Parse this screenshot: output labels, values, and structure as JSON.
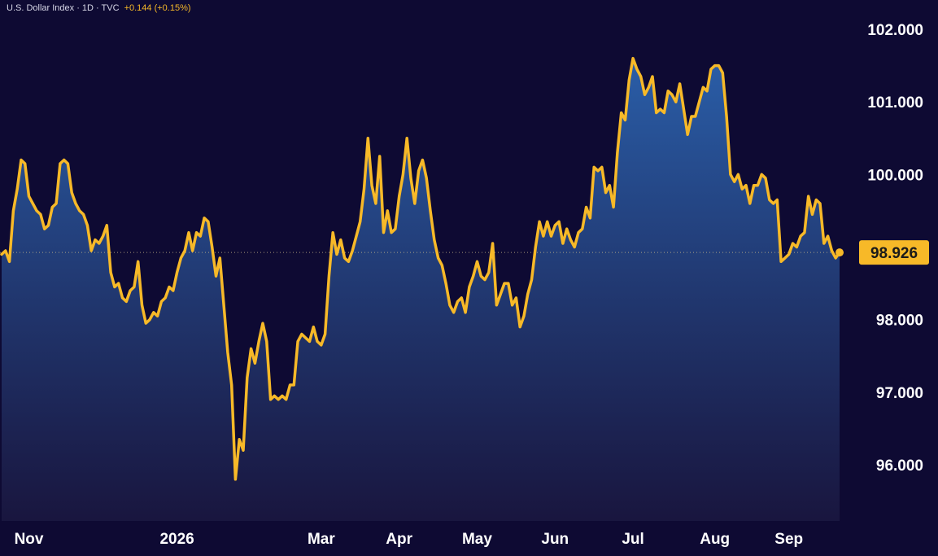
{
  "header": {
    "symbol": "U.S. Dollar Index · 1D · TVC",
    "change": "+0.144 (+0.15%)"
  },
  "colors": {
    "background": "#0e0a33",
    "line": "#f7b928",
    "area_top": "#2a5ea8",
    "area_bottom": "#1a1740",
    "text": "#ffffff"
  },
  "chart_data": {
    "type": "area",
    "title": "",
    "xlabel": "",
    "ylabel": "",
    "ylim": [
      95.0,
      102.3
    ],
    "y_ticks": [
      "96.000",
      "97.000",
      "98.000",
      "100.000",
      "101.000",
      "102.000"
    ],
    "x_tick_labels": [
      {
        "label": "Nov",
        "index": 7
      },
      {
        "label": "2026",
        "index": 45
      },
      {
        "label": "Mar",
        "index": 82
      },
      {
        "label": "Apr",
        "index": 102
      },
      {
        "label": "May",
        "index": 122
      },
      {
        "label": "Jun",
        "index": 142
      },
      {
        "label": "Jul",
        "index": 162
      },
      {
        "label": "Aug",
        "index": 183
      },
      {
        "label": "Sep",
        "index": 202
      }
    ],
    "last_value": "98.926",
    "reference_line": 98.926,
    "grid": false,
    "series": [
      {
        "values": [
          98.9,
          98.95,
          98.8,
          99.5,
          99.8,
          100.2,
          100.15,
          99.7,
          99.6,
          99.5,
          99.45,
          99.25,
          99.3,
          99.55,
          99.6,
          100.15,
          100.2,
          100.15,
          99.75,
          99.6,
          99.5,
          99.45,
          99.3,
          98.95,
          99.1,
          99.05,
          99.15,
          99.3,
          98.65,
          98.45,
          98.5,
          98.3,
          98.25,
          98.4,
          98.45,
          98.8,
          98.2,
          97.95,
          98.0,
          98.1,
          98.05,
          98.25,
          98.3,
          98.45,
          98.4,
          98.65,
          98.85,
          98.95,
          99.2,
          98.95,
          99.2,
          99.15,
          99.4,
          99.35,
          99.0,
          98.6,
          98.85,
          98.2,
          97.55,
          97.1,
          95.8,
          96.35,
          96.2,
          97.2,
          97.6,
          97.4,
          97.7,
          97.95,
          97.7,
          96.9,
          96.95,
          96.9,
          96.95,
          96.9,
          97.1,
          97.1,
          97.7,
          97.8,
          97.75,
          97.7,
          97.9,
          97.7,
          97.65,
          97.8,
          98.6,
          99.2,
          98.9,
          99.1,
          98.85,
          98.8,
          98.95,
          99.15,
          99.35,
          99.8,
          100.5,
          99.85,
          99.6,
          100.25,
          99.2,
          99.5,
          99.2,
          99.25,
          99.7,
          100.0,
          100.5,
          99.95,
          99.6,
          100.05,
          100.2,
          99.95,
          99.5,
          99.1,
          98.85,
          98.75,
          98.5,
          98.2,
          98.1,
          98.25,
          98.3,
          98.1,
          98.45,
          98.6,
          98.8,
          98.6,
          98.55,
          98.65,
          99.05,
          98.2,
          98.35,
          98.5,
          98.5,
          98.2,
          98.3,
          97.9,
          98.05,
          98.35,
          98.55,
          99.0,
          99.35,
          99.15,
          99.35,
          99.15,
          99.3,
          99.35,
          99.05,
          99.25,
          99.1,
          99.0,
          99.2,
          99.25,
          99.55,
          99.4,
          100.1,
          100.05,
          100.1,
          99.75,
          99.85,
          99.55,
          100.3,
          100.85,
          100.75,
          101.3,
          101.6,
          101.45,
          101.35,
          101.1,
          101.2,
          101.35,
          100.85,
          100.9,
          100.85,
          101.15,
          101.1,
          101.0,
          101.25,
          100.9,
          100.55,
          100.8,
          100.8,
          101.0,
          101.2,
          101.15,
          101.45,
          101.5,
          101.5,
          101.4,
          100.8,
          100.0,
          99.9,
          100.0,
          99.8,
          99.85,
          99.6,
          99.85,
          99.85,
          100.0,
          99.95,
          99.65,
          99.6,
          99.65,
          98.8,
          98.85,
          98.9,
          99.05,
          99.0,
          99.15,
          99.2,
          99.7,
          99.45,
          99.65,
          99.6,
          99.05,
          99.15,
          98.95,
          98.85,
          98.926
        ]
      }
    ]
  }
}
